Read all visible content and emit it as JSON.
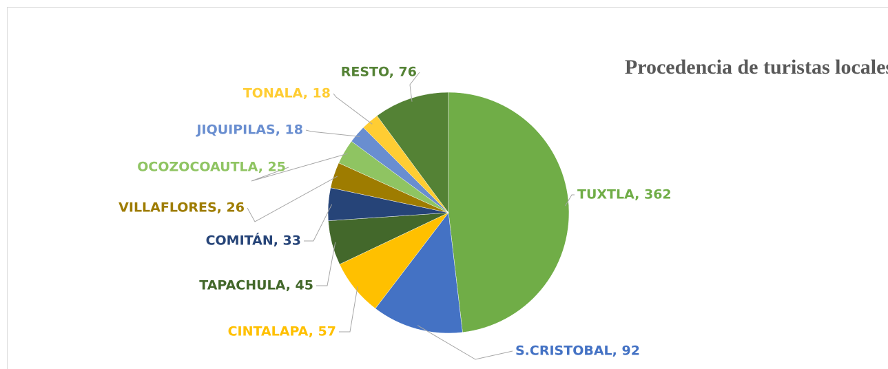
{
  "chart_data": {
    "type": "pie",
    "title": "Procedencia de turistas locales",
    "categories": [
      "TUXTLA",
      "S.CRISTOBAL",
      "CINTALAPA",
      "TAPACHULA",
      "COMITÁN",
      "VILLAFLORES",
      "OCOZOCOAUTLA",
      "JIQUIPILAS",
      "TONALA",
      "RESTO"
    ],
    "values": [
      362,
      92,
      57,
      45,
      33,
      26,
      25,
      18,
      18,
      76
    ],
    "value_labels": [
      "TUXTLA, 362",
      "S.CRISTOBAL, 92",
      "CINTALAPA, 57",
      "TAPACHULA, 45",
      "COMITÁN, 33",
      "VILLAFLORES, 26",
      "OCOZOCOAUTLA, 25",
      "JIQUIPILAS, 18",
      "TONALA, 18",
      "RESTO, 76"
    ],
    "colors": [
      "#70ad47",
      "#4472c4",
      "#ffc000",
      "#43682b",
      "#264478",
      "#9e7c00",
      "#8fc462",
      "#698ed0",
      "#ffcd33",
      "#548235"
    ],
    "label_colors": [
      "#70ad47",
      "#4472c4",
      "#ffc000",
      "#43682b",
      "#264478",
      "#9e7c00",
      "#8fc462",
      "#698ed0",
      "#ffcd33",
      "#548235"
    ]
  }
}
